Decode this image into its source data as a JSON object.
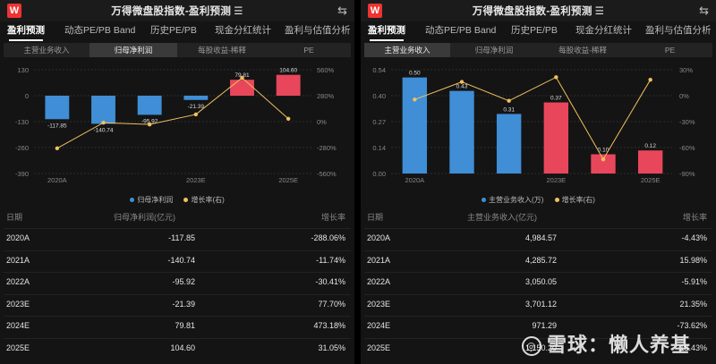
{
  "left": {
    "logo": "W",
    "title": "万得微盘股指数-盈利预测",
    "menu_icon": "☰",
    "swap_icon": "⇆",
    "tabs": [
      "盈利预测",
      "动态PE/PB Band",
      "历史PE/PB",
      "现金分红统计",
      "盈利与估值分析"
    ],
    "subtabs": [
      "主营业务收入",
      "归母净利润",
      "每股收益-稀释",
      "PE"
    ],
    "legend": [
      "归母净利润",
      "增长率(右)"
    ],
    "table_header": [
      "日期",
      "归母净利润(亿元)",
      "增长率"
    ],
    "rows": [
      [
        "2020A",
        "-117.85",
        "-288.06%"
      ],
      [
        "2021A",
        "-140.74",
        "-11.74%"
      ],
      [
        "2022A",
        "-95.92",
        "-30.41%"
      ],
      [
        "2023E",
        "-21.39",
        "77.70%"
      ],
      [
        "2024E",
        "79.81",
        "473.18%"
      ],
      [
        "2025E",
        "104.60",
        "31.05%"
      ]
    ]
  },
  "right": {
    "logo": "W",
    "title": "万得微盘股指数-盈利预测",
    "menu_icon": "☰",
    "swap_icon": "⇆",
    "tabs": [
      "盈利预测",
      "动态PE/PB Band",
      "历史PE/PB",
      "现金分红统计",
      "盈利与估值分析"
    ],
    "subtabs": [
      "主营业务收入",
      "归母净利润",
      "每股收益-稀释",
      "PE"
    ],
    "legend": [
      "主营业务收入(万)",
      "增长率(右)"
    ],
    "table_header": [
      "日期",
      "主营业务收入(亿元)",
      "增长率"
    ],
    "rows": [
      [
        "2020A",
        "4,984.57",
        "-4.43%"
      ],
      [
        "2021A",
        "4,285.72",
        "15.98%"
      ],
      [
        "2022A",
        "3,050.05",
        "-5.91%"
      ],
      [
        "2023E",
        "3,701.12",
        "21.35%"
      ],
      [
        "2024E",
        "971.29",
        "-73.62%"
      ],
      [
        "2025E",
        "1,150.20",
        "18.43%"
      ]
    ],
    "watermark": "雪球：懒人养基"
  },
  "chart_data": [
    {
      "type": "bar",
      "categories": [
        "2020A",
        "2021A",
        "2022A",
        "2023E",
        "2024E",
        "2025E"
      ],
      "x_tick_labels": [
        "2020A",
        "2023E",
        "2025E"
      ],
      "series": [
        {
          "name": "归母净利润",
          "values": [
            -117.85,
            -140.74,
            -95.92,
            -21.39,
            79.81,
            104.6
          ],
          "data_labels": [
            "-117.85",
            "-140.74",
            "-95.92",
            "-21.39",
            "79.81",
            "104.60"
          ]
        },
        {
          "name": "增长率(右)",
          "type": "line",
          "values": [
            -288.06,
            -11.74,
            -30.41,
            77.7,
            473.18,
            31.05
          ]
        }
      ],
      "ylim": [
        -390,
        130
      ],
      "y_ticks": [
        "130",
        "0",
        "-130",
        "-260",
        "-390"
      ],
      "y2lim": [
        -560,
        560
      ],
      "y2_ticks": [
        "560%",
        "280%",
        "0%",
        "-280%",
        "-560%"
      ],
      "colors": {
        "positive": "#e8475b",
        "negative": "#3f8ed6",
        "line": "#f0c060"
      },
      "legend_position": "bottom"
    },
    {
      "type": "bar",
      "categories": [
        "2020A",
        "2021A",
        "2022A",
        "2023E",
        "2024E",
        "2025E"
      ],
      "x_tick_labels": [
        "2020A",
        "2023E",
        "2025E"
      ],
      "series": [
        {
          "name": "主营业务收入(万)",
          "values": [
            0.5,
            0.43,
            0.31,
            0.37,
            0.1,
            0.12
          ],
          "data_labels": [
            "0.50",
            "0.43",
            "0.31",
            "0.37",
            "0.10",
            "0.12"
          ]
        },
        {
          "name": "增长率(右)",
          "type": "line",
          "values": [
            -4.43,
            15.98,
            -5.91,
            21.35,
            -73.62,
            18.43
          ]
        }
      ],
      "ylim": [
        0,
        0.54
      ],
      "y_ticks": [
        "0.54",
        "0.40",
        "0.27",
        "0.14",
        "0.00"
      ],
      "y2lim": [
        -90,
        30
      ],
      "y2_ticks": [
        "30%",
        "0%",
        "-30%",
        "-60%",
        "-90%"
      ],
      "colors": {
        "blue": "#3f8ed6",
        "red": "#e8475b",
        "line": "#f0c060"
      },
      "legend_position": "bottom"
    }
  ]
}
